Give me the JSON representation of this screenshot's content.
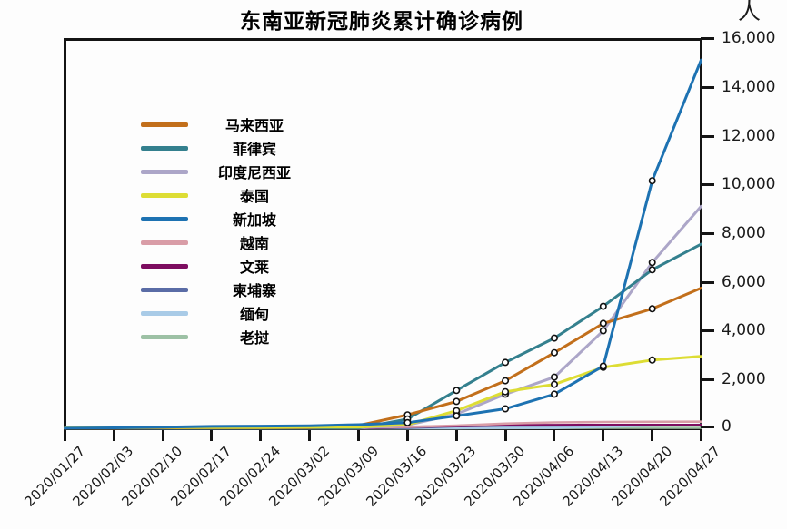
{
  "title": "东南亚新冠肺炎累计确诊病例",
  "y_axis": {
    "unit": "人",
    "tick_labels": [
      "16,000",
      "14,000",
      "12,000",
      "10,000",
      "8,000",
      "6,000",
      "4,000",
      "2,000",
      "0"
    ]
  },
  "chart_data": {
    "type": "line",
    "title": "东南亚新冠肺炎累计确诊病例",
    "y_unit": "人",
    "xlabel": "",
    "ylabel": "人",
    "ylim": [
      0,
      16000
    ],
    "y_tick_interval": 2000,
    "grid": false,
    "legend_position": "upper-left-inside",
    "x": [
      "2020/01/27",
      "2020/02/03",
      "2020/02/10",
      "2020/02/17",
      "2020/02/24",
      "2020/03/02",
      "2020/03/09",
      "2020/03/16",
      "2020/03/23",
      "2020/03/30",
      "2020/04/06",
      "2020/04/13",
      "2020/04/20",
      "2020/04/27"
    ],
    "series": [
      {
        "name": "马来西亚",
        "color": "#C26F1B",
        "marker": true,
        "values": [
          4,
          10,
          18,
          22,
          22,
          29,
          117,
          550,
          1100,
          1950,
          3100,
          4300,
          4900,
          5750
        ]
      },
      {
        "name": "菲律宾",
        "color": "#34808E",
        "marker": true,
        "values": [
          1,
          2,
          3,
          3,
          3,
          3,
          10,
          380,
          1550,
          2700,
          3700,
          5000,
          6500,
          7550
        ]
      },
      {
        "name": "印度尼西亚",
        "color": "#ACA6C8",
        "marker": true,
        "values": [
          0,
          0,
          0,
          0,
          0,
          2,
          6,
          134,
          580,
          1400,
          2100,
          4000,
          6800,
          9100
        ]
      },
      {
        "name": "泰国",
        "color": "#DDDD34",
        "marker": true,
        "values": [
          14,
          19,
          32,
          35,
          35,
          43,
          50,
          150,
          720,
          1500,
          1800,
          2500,
          2800,
          2950
        ]
      },
      {
        "name": "新加坡",
        "color": "#1D72B2",
        "marker": true,
        "values": [
          4,
          18,
          43,
          77,
          89,
          106,
          150,
          230,
          510,
          800,
          1400,
          2550,
          10150,
          15100
        ]
      },
      {
        "name": "越南",
        "color": "#D99DA7",
        "marker": false,
        "values": [
          2,
          8,
          14,
          16,
          16,
          16,
          30,
          61,
          113,
          194,
          241,
          262,
          268,
          270
        ]
      },
      {
        "name": "文莱",
        "color": "#7D0D60",
        "marker": false,
        "values": [
          0,
          0,
          0,
          0,
          0,
          0,
          1,
          54,
          91,
          127,
          135,
          136,
          138,
          138
        ]
      },
      {
        "name": "柬埔寨",
        "color": "#5A6CA6",
        "marker": false,
        "values": [
          1,
          1,
          1,
          1,
          1,
          1,
          2,
          24,
          87,
          107,
          114,
          122,
          122,
          122
        ]
      },
      {
        "name": "缅甸",
        "color": "#A9CBE7",
        "marker": false,
        "values": [
          0,
          0,
          0,
          0,
          0,
          0,
          0,
          0,
          5,
          14,
          22,
          62,
          111,
          146
        ]
      },
      {
        "name": "老挝",
        "color": "#9DC1A5",
        "marker": false,
        "values": [
          0,
          0,
          0,
          0,
          0,
          0,
          0,
          0,
          2,
          8,
          12,
          19,
          19,
          19
        ]
      }
    ]
  }
}
